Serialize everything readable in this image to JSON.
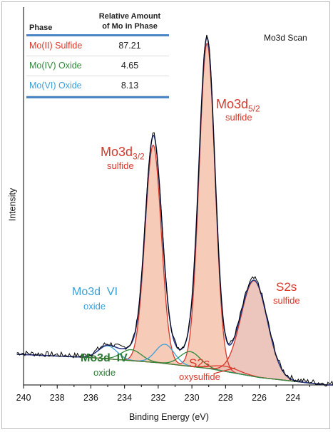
{
  "colors": {
    "sulfide": "#d9372a",
    "oxide_iv": "#2e8b3a",
    "oxide_vi": "#3aa0d8",
    "envelope": "#2a3a8c",
    "raw": "#000000",
    "table_rule": "#4a86c5"
  },
  "table": {
    "header_phase": "Phase",
    "header_amount_line1": "Relative Amount",
    "header_amount_line2": "of Mo in Phase",
    "rows": [
      {
        "phase": "Mo(II) Sulfide",
        "amount": "87.21",
        "color": "#d9372a"
      },
      {
        "phase": "Mo(IV) Oxide",
        "amount": "4.65",
        "color": "#2e8b3a"
      },
      {
        "phase": "Mo(VI) Oxide",
        "amount": "8.13",
        "color": "#3aa0d8"
      }
    ]
  },
  "annotations": {
    "mo3d52_main": "Mo3d",
    "mo3d52_sub": "5/2",
    "mo3d52_label": "sulfide",
    "mo3d32_main": "Mo3d",
    "mo3d32_sub": "3/2",
    "mo3d32_label": "sulfide",
    "s2s_title": "S2s",
    "s2s_label": "sulfide",
    "vi_title": "Mo3d  VI",
    "vi_label": "oxide",
    "iv_title": "Mo3d  IV",
    "iv_label": "oxide",
    "s2s_oxy_title": "S2s",
    "s2s_oxy_label": "oxysulfide"
  },
  "chart_data": {
    "type": "line",
    "title": "Mo3d Scan",
    "xlabel": "Binding Energy (eV)",
    "ylabel": "Intensity",
    "xlim": [
      240,
      222
    ],
    "x_reversed": true,
    "ylim": [
      0,
      100
    ],
    "x_ticks": [
      240,
      238,
      236,
      234,
      232,
      230,
      228,
      226,
      224
    ],
    "y_ticks_visible": false,
    "grid": false,
    "baseline": [
      [
        240.5,
        9.0
      ],
      [
        236,
        8.0
      ],
      [
        232,
        6.5
      ],
      [
        229,
        4.8
      ],
      [
        226,
        2.2
      ],
      [
        222,
        0.0
      ]
    ],
    "components": [
      {
        "name": "Mo(II) Sulfide",
        "peaks": [
          {
            "center": 232.3,
            "height": 63.5,
            "sigma": 0.48
          },
          {
            "center": 229.1,
            "height": 95.0,
            "sigma": 0.47
          }
        ],
        "color": "#d9372a",
        "fill": "#f4c2ac"
      },
      {
        "name": "Mo(IV) Oxide",
        "peaks": [
          {
            "center": 233.6,
            "height": 3.2,
            "sigma": 0.6
          },
          {
            "center": 230.1,
            "height": 4.3,
            "sigma": 0.6
          }
        ],
        "color": "#2e8b3a"
      },
      {
        "name": "Mo(VI) Oxide",
        "peaks": [
          {
            "center": 235.0,
            "height": 3.8,
            "sigma": 0.55
          },
          {
            "center": 231.6,
            "height": 5.6,
            "sigma": 0.55
          }
        ],
        "color": "#3aa0d8"
      },
      {
        "name": "S2s sulfide",
        "peaks": [
          {
            "center": 226.3,
            "height": 28.0,
            "sigma": 0.78
          }
        ],
        "color": "#d9372a",
        "fill": "#e9bcb0"
      },
      {
        "name": "S2s oxysulfide",
        "peaks": [
          {
            "center": 228.0,
            "height": 1.5,
            "sigma": 0.8
          }
        ],
        "color": "#d9372a"
      }
    ]
  }
}
